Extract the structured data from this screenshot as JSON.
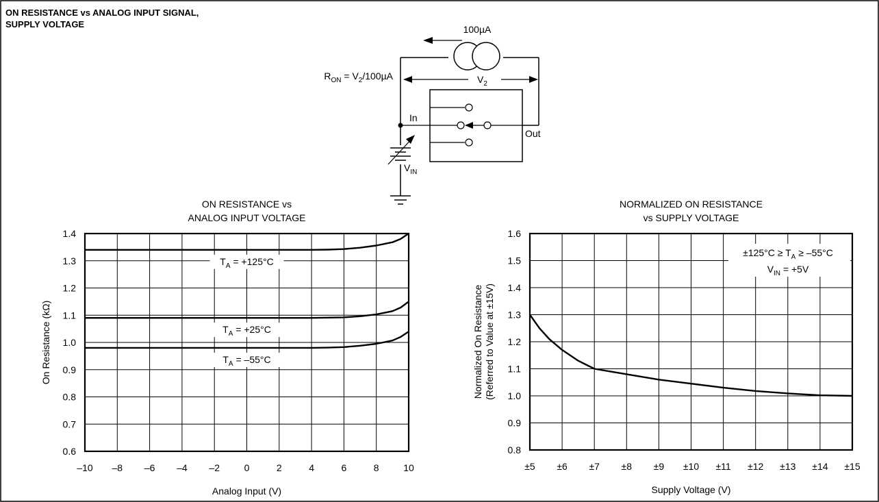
{
  "header": {
    "title_lines": [
      "ON RESISTANCE vs ANALOG INPUT SIGNAL,",
      "SUPPLY VOLTAGE"
    ]
  },
  "circuit": {
    "source_label": "100µA",
    "ron_formula": {
      "r": "R",
      "on": "ON",
      "eq": " = V",
      "two": "2",
      "div": "/100µA"
    },
    "v2_label": {
      "v": "V",
      "two": "2"
    },
    "in_label": "In",
    "out_label": "Out",
    "vin_label": {
      "v": "V",
      "in": "IN"
    }
  },
  "chart_data": [
    {
      "type": "line",
      "title": [
        "ON RESISTANCE vs",
        "ANALOG INPUT VOLTAGE"
      ],
      "xlabel": "Analog Input (V)",
      "ylabel": "On Resistance (kΩ)",
      "xlim": [
        -10,
        10
      ],
      "ylim": [
        0.6,
        1.4
      ],
      "x_ticks": [
        -10,
        -8,
        -6,
        -4,
        -2,
        0,
        2,
        4,
        6,
        8,
        10
      ],
      "x_tick_labels": [
        "–10",
        "–8",
        "–6",
        "–4",
        "–2",
        "0",
        "2",
        "4",
        "6",
        "8",
        "10"
      ],
      "y_ticks": [
        0.6,
        0.7,
        0.8,
        0.9,
        1.0,
        1.1,
        1.2,
        1.3,
        1.4
      ],
      "y_tick_labels": [
        "0.6",
        "0.7",
        "0.8",
        "0.9",
        "1.0",
        "1.1",
        "1.2",
        "1.3",
        "1.4"
      ],
      "grid": true,
      "series": [
        {
          "name": "T_A = +125°C",
          "label": {
            "pre": "T",
            "sub": "A",
            "post": " = +125°C"
          },
          "x": [
            -10,
            -6,
            -2,
            2,
            4,
            5,
            6,
            7,
            8,
            9,
            9.5,
            10
          ],
          "y": [
            1.34,
            1.34,
            1.34,
            1.34,
            1.34,
            1.341,
            1.343,
            1.348,
            1.356,
            1.368,
            1.38,
            1.4
          ]
        },
        {
          "name": "T_A = +25°C",
          "label": {
            "pre": "T",
            "sub": "A",
            "post": " = +25°C"
          },
          "x": [
            -10,
            -6,
            -2,
            2,
            4,
            5,
            6,
            7,
            8,
            9,
            9.5,
            10
          ],
          "y": [
            1.09,
            1.09,
            1.09,
            1.09,
            1.09,
            1.091,
            1.092,
            1.096,
            1.103,
            1.115,
            1.128,
            1.15
          ]
        },
        {
          "name": "T_A = –55°C",
          "label": {
            "pre": "T",
            "sub": "A",
            "post": " = –55°C"
          },
          "x": [
            -10,
            -6,
            -2,
            2,
            4,
            5,
            6,
            7,
            8,
            9,
            9.5,
            10
          ],
          "y": [
            0.98,
            0.98,
            0.98,
            0.98,
            0.98,
            0.981,
            0.983,
            0.988,
            0.995,
            1.007,
            1.02,
            1.04
          ]
        }
      ]
    },
    {
      "type": "line",
      "title": [
        "NORMALIZED ON RESISTANCE",
        "vs SUPPLY VOLTAGE"
      ],
      "xlabel": "Supply Voltage (V)",
      "ylabel": [
        "Normalized On Resistance",
        "(Referred to Value at ±15V)"
      ],
      "xlim": [
        5,
        15
      ],
      "ylim": [
        0.8,
        1.6
      ],
      "x_ticks": [
        5,
        6,
        7,
        8,
        9,
        10,
        11,
        12,
        13,
        14,
        15
      ],
      "x_tick_labels": [
        "±5",
        "±6",
        "±7",
        "±8",
        "±9",
        "±10",
        "±11",
        "±12",
        "±13",
        "±14",
        "±15"
      ],
      "y_ticks": [
        0.8,
        0.9,
        1.0,
        1.1,
        1.2,
        1.3,
        1.4,
        1.5,
        1.6
      ],
      "y_tick_labels": [
        "0.8",
        "0.9",
        "1.0",
        "1.1",
        "1.2",
        "1.3",
        "1.4",
        "1.5",
        "1.6"
      ],
      "grid": true,
      "annotations": {
        "line1": {
          "pre": "±125°C ≥ T",
          "sub": "A",
          "post": " ≥ –55°C"
        },
        "line2": {
          "pre": "V",
          "sub": "IN",
          "post": " = +5V"
        }
      },
      "series": [
        {
          "x": [
            5,
            5.3,
            5.6,
            6,
            6.5,
            7,
            8,
            9,
            10,
            11,
            12,
            13,
            14,
            15
          ],
          "y": [
            1.3,
            1.25,
            1.21,
            1.17,
            1.13,
            1.1,
            1.08,
            1.06,
            1.045,
            1.03,
            1.018,
            1.009,
            1.002,
            1.0
          ]
        }
      ]
    }
  ]
}
